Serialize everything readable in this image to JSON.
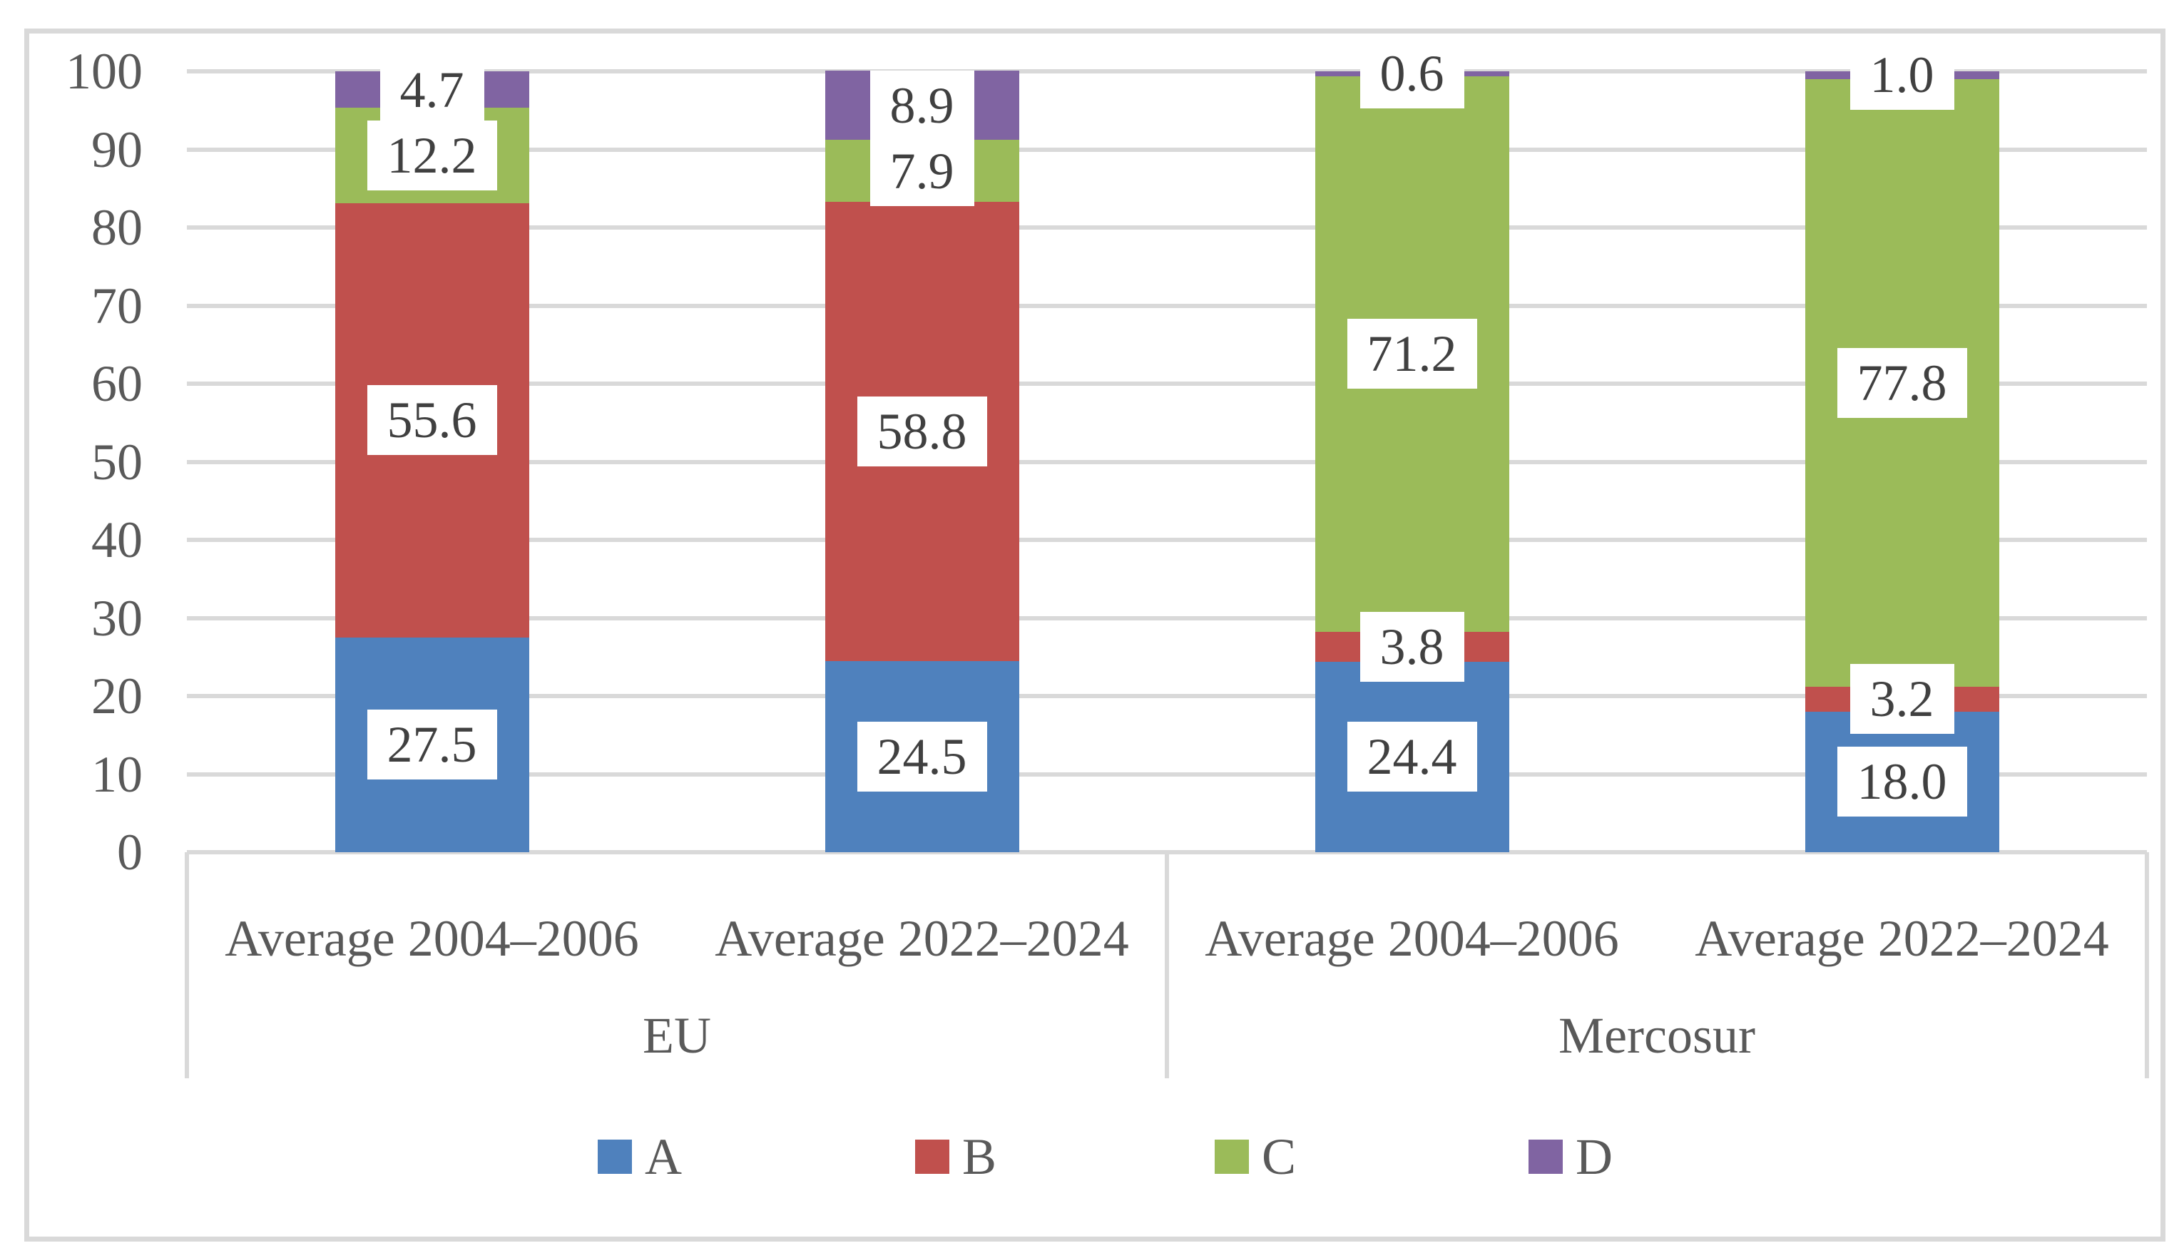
{
  "chart_data": {
    "type": "bar",
    "stacked": true,
    "orientation": "vertical",
    "title": "",
    "categories": [
      {
        "label": "Average 2004–2006",
        "group": "EU"
      },
      {
        "label": "Average 2022–2024",
        "group": "EU"
      },
      {
        "label": "Average 2004–2006",
        "group": "Mercosur"
      },
      {
        "label": "Average 2022–2024",
        "group": "Mercosur"
      }
    ],
    "group_labels": [
      "EU",
      "Mercosur"
    ],
    "series": [
      {
        "name": "A",
        "color": "#4F81BD",
        "values": [
          27.5,
          24.5,
          24.4,
          18.0
        ]
      },
      {
        "name": "B",
        "color": "#C0504D",
        "values": [
          55.6,
          58.8,
          3.8,
          3.2
        ]
      },
      {
        "name": "C",
        "color": "#9BBB59",
        "values": [
          12.2,
          7.9,
          71.2,
          77.8
        ]
      },
      {
        "name": "D",
        "color": "#8064A2",
        "values": [
          4.7,
          8.9,
          0.6,
          1.0
        ]
      }
    ],
    "data_labels_shown": true,
    "data_label_decimals": 1,
    "ylim": [
      0,
      100
    ],
    "yticks": [
      0,
      10,
      20,
      30,
      40,
      50,
      60,
      70,
      80,
      90,
      100
    ],
    "grid": true,
    "legend_position": "bottom",
    "legend_entries": [
      "A",
      "B",
      "C",
      "D"
    ]
  },
  "colors": {
    "background": "#FFFFFF",
    "gridline": "#D9D9D9",
    "frame_border": "#D9D9D9",
    "axis_text": "#595959",
    "data_label_text": "#404040"
  }
}
